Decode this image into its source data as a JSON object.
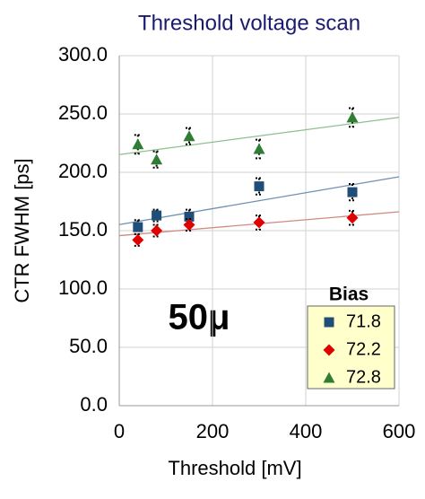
{
  "chart_data": {
    "type": "scatter",
    "title": "Threshold voltage scan",
    "x_label": "Threshold [mV]",
    "y_label": "CTR FWHM [ps]",
    "annotation": "50μ",
    "legend_title": "Bias",
    "legend": "bottom-right",
    "xlim": [
      0,
      600
    ],
    "xticks": [
      0,
      200,
      400,
      600
    ],
    "ylim": [
      0,
      300
    ],
    "yticks": [
      {
        "value": 0,
        "label": "0.0"
      },
      {
        "value": 50,
        "label": "50.0"
      },
      {
        "value": 100,
        "label": "100.0"
      },
      {
        "value": 150,
        "label": "150.0"
      },
      {
        "value": 200,
        "label": "200.0"
      },
      {
        "value": 250,
        "label": "250.0"
      },
      {
        "value": 300,
        "label": "300.0"
      }
    ],
    "grid": true,
    "trendline": "linear",
    "series": [
      {
        "name": "71.8",
        "marker": "square",
        "color": "#1f4e79",
        "line_color": "#6f8fb0",
        "x": [
          40,
          80,
          150,
          300,
          500
        ],
        "values": [
          153,
          163,
          162,
          188,
          183
        ],
        "errors": [
          6,
          5,
          6,
          7,
          7
        ]
      },
      {
        "name": "72.2",
        "marker": "diamond",
        "color": "#e00000",
        "line_color": "#d08a80",
        "x": [
          40,
          80,
          150,
          300,
          500
        ],
        "values": [
          142,
          150,
          155,
          157,
          161
        ],
        "errors": [
          5,
          5,
          5,
          6,
          6
        ]
      },
      {
        "name": "72.8",
        "marker": "triangle",
        "color": "#2e7d32",
        "line_color": "#8fbf8f",
        "x": [
          40,
          80,
          150,
          300,
          500
        ],
        "values": [
          224,
          211,
          231,
          220,
          247
        ],
        "errors": [
          8,
          7,
          7,
          8,
          8
        ]
      }
    ]
  }
}
